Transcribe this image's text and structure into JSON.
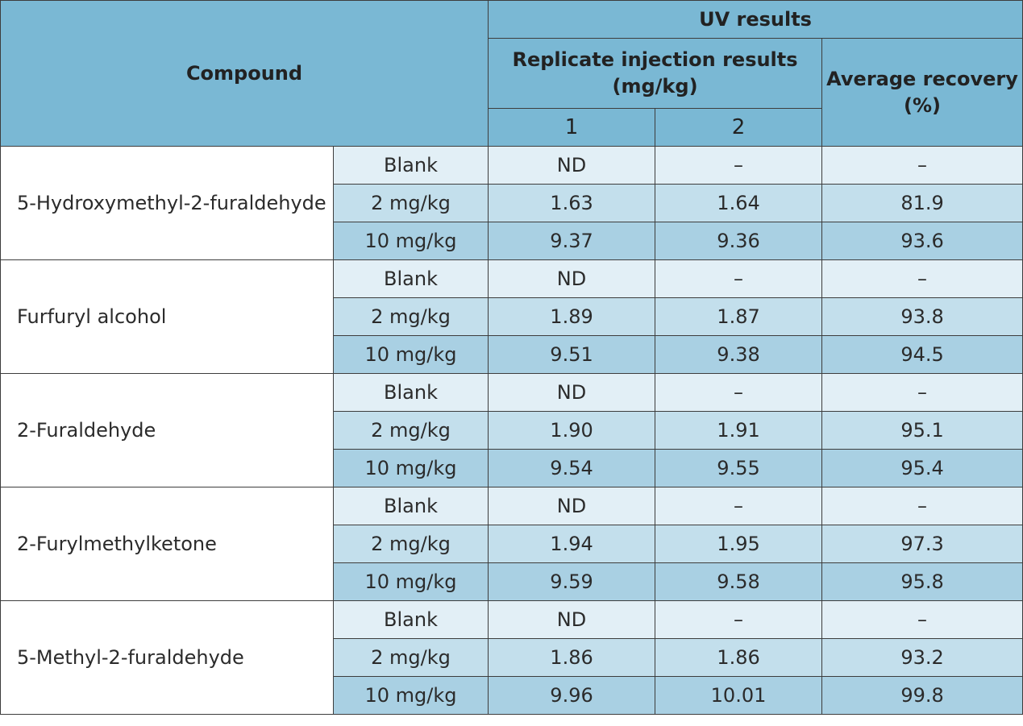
{
  "header": {
    "compound": "Compound",
    "uv_results": "UV results",
    "replicate_label": "Replicate injection results (mg/kg)",
    "average_label": "Average recovery (%)",
    "rep1": "1",
    "rep2": "2"
  },
  "rows": [
    {
      "compound": "5-Hydroxymethyl-2-furaldehyde",
      "levels": [
        {
          "level": "Blank",
          "r1": "ND",
          "r2": "–",
          "avg": "–"
        },
        {
          "level": "2 mg/kg",
          "r1": "1.63",
          "r2": "1.64",
          "avg": "81.9"
        },
        {
          "level": "10 mg/kg",
          "r1": "9.37",
          "r2": "9.36",
          "avg": "93.6"
        }
      ]
    },
    {
      "compound": "Furfuryl alcohol",
      "levels": [
        {
          "level": "Blank",
          "r1": "ND",
          "r2": "–",
          "avg": "–"
        },
        {
          "level": "2 mg/kg",
          "r1": "1.89",
          "r2": "1.87",
          "avg": "93.8"
        },
        {
          "level": "10 mg/kg",
          "r1": "9.51",
          "r2": "9.38",
          "avg": "94.5"
        }
      ]
    },
    {
      "compound": "2-Furaldehyde",
      "levels": [
        {
          "level": "Blank",
          "r1": "ND",
          "r2": "–",
          "avg": "–"
        },
        {
          "level": "2 mg/kg",
          "r1": "1.90",
          "r2": "1.91",
          "avg": "95.1"
        },
        {
          "level": "10 mg/kg",
          "r1": "9.54",
          "r2": "9.55",
          "avg": "95.4"
        }
      ]
    },
    {
      "compound": "2-Furylmethylketone",
      "levels": [
        {
          "level": "Blank",
          "r1": "ND",
          "r2": "–",
          "avg": "–"
        },
        {
          "level": "2 mg/kg",
          "r1": "1.94",
          "r2": "1.95",
          "avg": "97.3"
        },
        {
          "level": "10 mg/kg",
          "r1": "9.59",
          "r2": "9.58",
          "avg": "95.8"
        }
      ]
    },
    {
      "compound": "5-Methyl-2-furaldehyde",
      "levels": [
        {
          "level": "Blank",
          "r1": "ND",
          "r2": "–",
          "avg": "–"
        },
        {
          "level": "2 mg/kg",
          "r1": "1.86",
          "r2": "1.86",
          "avg": "93.2"
        },
        {
          "level": "10 mg/kg",
          "r1": "9.96",
          "r2": "10.01",
          "avg": "99.8"
        }
      ]
    }
  ]
}
